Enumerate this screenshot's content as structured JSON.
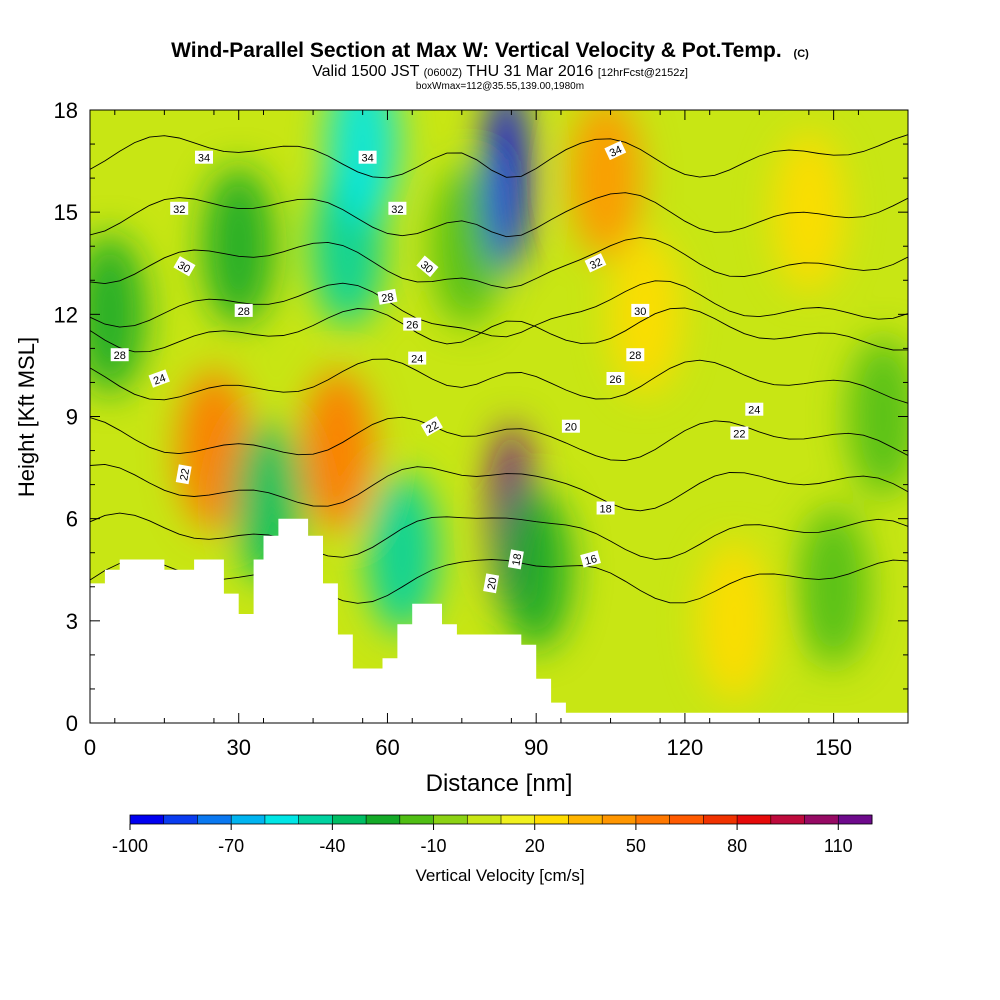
{
  "chart_data": {
    "type": "heatmap",
    "title": "Wind-Parallel Section at Max W: Vertical Velocity & Pot.Temp.",
    "title_suffix": "(C)",
    "subtitle_main_1": "Valid 1500 JST",
    "subtitle_small_1": "(0600Z)",
    "subtitle_main_2": "THU 31 Mar 2016",
    "subtitle_small_2": "[12hrFcst@2152z]",
    "subtitle_line2": "boxWmax=112@35.55,139.00,1980m",
    "xlabel": "Distance [nm]",
    "ylabel": "Height [Kft MSL]",
    "xlim": [
      0,
      165
    ],
    "ylim": [
      0,
      18
    ],
    "xticks": [
      0,
      30,
      60,
      90,
      120,
      150
    ],
    "yticks": [
      0,
      3,
      6,
      9,
      12,
      15,
      18
    ],
    "colorbar": {
      "label": "Vertical Velocity [cm/s]",
      "tick_labels": [
        "-100",
        "-70",
        "-40",
        "-10",
        "20",
        "50",
        "80",
        "110"
      ],
      "tick_values": [
        -100,
        -70,
        -40,
        -10,
        20,
        50,
        80,
        110
      ],
      "levels": [
        -100,
        -90,
        -80,
        -70,
        -60,
        -50,
        -40,
        -30,
        -20,
        -10,
        0,
        10,
        20,
        30,
        40,
        50,
        60,
        70,
        80,
        90,
        100,
        110,
        120
      ],
      "colors": [
        "#0000f0",
        "#0a3cf0",
        "#0a78f0",
        "#00b4f0",
        "#00e6e6",
        "#00d2a0",
        "#00be64",
        "#14aa28",
        "#50be14",
        "#8cd214",
        "#c8e614",
        "#f0f01e",
        "#ffdc00",
        "#ffb400",
        "#ff9600",
        "#ff7800",
        "#ff5a00",
        "#f03200",
        "#e60a0a",
        "#be0a3c",
        "#960a64",
        "#6e0a8c"
      ]
    },
    "vertical_velocity_cells": [
      {
        "x": 4,
        "y": 12,
        "w": -30
      },
      {
        "x": 25,
        "y": 8,
        "w": 55
      },
      {
        "x": 30,
        "y": 14,
        "w": -30
      },
      {
        "x": 36,
        "y": 6.5,
        "w": -40
      },
      {
        "x": 50,
        "y": 8,
        "w": 50
      },
      {
        "x": 52,
        "y": 14,
        "w": -50
      },
      {
        "x": 55,
        "y": 17,
        "w": -60
      },
      {
        "x": 63,
        "y": 5,
        "w": -45
      },
      {
        "x": 76,
        "y": 14,
        "w": -20
      },
      {
        "x": 84,
        "y": 16,
        "w": -95
      },
      {
        "x": 85,
        "y": 6,
        "w": 112
      },
      {
        "x": 90,
        "y": 4.5,
        "w": -30
      },
      {
        "x": 104,
        "y": 16,
        "w": 40
      },
      {
        "x": 112,
        "y": 12,
        "w": 20
      },
      {
        "x": 130,
        "y": 3,
        "w": 25
      },
      {
        "x": 145,
        "y": 15,
        "w": 25
      },
      {
        "x": 150,
        "y": 4,
        "w": -20
      },
      {
        "x": 160,
        "y": 9,
        "w": -15
      }
    ],
    "terrain": [
      [
        0,
        4.1
      ],
      [
        3,
        4.1
      ],
      [
        3,
        4.5
      ],
      [
        6,
        4.5
      ],
      [
        6,
        4.8
      ],
      [
        15,
        4.8
      ],
      [
        15,
        4.5
      ],
      [
        21,
        4.5
      ],
      [
        21,
        4.8
      ],
      [
        27,
        4.8
      ],
      [
        27,
        3.8
      ],
      [
        30,
        3.8
      ],
      [
        30,
        3.2
      ],
      [
        33,
        3.2
      ],
      [
        33,
        4.8
      ],
      [
        35,
        4.8
      ],
      [
        35,
        5.5
      ],
      [
        38,
        5.5
      ],
      [
        38,
        6.0
      ],
      [
        44,
        6.0
      ],
      [
        44,
        5.5
      ],
      [
        47,
        5.5
      ],
      [
        47,
        4.1
      ],
      [
        50,
        4.1
      ],
      [
        50,
        2.6
      ],
      [
        53,
        2.6
      ],
      [
        53,
        1.6
      ],
      [
        59,
        1.6
      ],
      [
        59,
        1.9
      ],
      [
        62,
        1.9
      ],
      [
        62,
        2.9
      ],
      [
        65,
        2.9
      ],
      [
        65,
        3.5
      ],
      [
        71,
        3.5
      ],
      [
        71,
        2.9
      ],
      [
        74,
        2.9
      ],
      [
        74,
        2.6
      ],
      [
        87,
        2.6
      ],
      [
        87,
        2.3
      ],
      [
        90,
        2.3
      ],
      [
        90,
        1.3
      ],
      [
        93,
        1.3
      ],
      [
        93,
        0.6
      ],
      [
        96,
        0.6
      ],
      [
        96,
        0.3
      ],
      [
        165,
        0.3
      ]
    ],
    "isentropes": [
      {
        "value": 16,
        "y": 4.2
      },
      {
        "value": 18,
        "y": 5.5
      },
      {
        "value": 20,
        "y": 6.9
      },
      {
        "value": 22,
        "y": 8.3
      },
      {
        "value": 24,
        "y": 10.0
      },
      {
        "value": 26,
        "y": 11.5
      },
      {
        "value": 28,
        "y": 12.3
      },
      {
        "value": 30,
        "y": 13.6
      },
      {
        "value": 32,
        "y": 15.0
      },
      {
        "value": 34,
        "y": 16.7
      }
    ],
    "contour_labels": [
      {
        "text": "34",
        "x": 23,
        "y": 16.6,
        "a": 0
      },
      {
        "text": "34",
        "x": 56,
        "y": 16.6,
        "a": 0
      },
      {
        "text": "34",
        "x": 106,
        "y": 16.8,
        "a": -25
      },
      {
        "text": "32",
        "x": 18,
        "y": 15.1,
        "a": 0
      },
      {
        "text": "32",
        "x": 62,
        "y": 15.1,
        "a": 0
      },
      {
        "text": "32",
        "x": 102,
        "y": 13.5,
        "a": -25
      },
      {
        "text": "30",
        "x": 19,
        "y": 13.4,
        "a": 30
      },
      {
        "text": "30",
        "x": 68,
        "y": 13.4,
        "a": 40
      },
      {
        "text": "30",
        "x": 111,
        "y": 12.1,
        "a": 0
      },
      {
        "text": "28",
        "x": 6,
        "y": 10.8,
        "a": 0
      },
      {
        "text": "28",
        "x": 31,
        "y": 12.1,
        "a": 0
      },
      {
        "text": "28",
        "x": 60,
        "y": 12.5,
        "a": -10
      },
      {
        "text": "28",
        "x": 110,
        "y": 10.8,
        "a": 0
      },
      {
        "text": "26",
        "x": 65,
        "y": 11.7,
        "a": 0
      },
      {
        "text": "26",
        "x": 106,
        "y": 10.1,
        "a": 0
      },
      {
        "text": "24",
        "x": 14,
        "y": 10.1,
        "a": -20
      },
      {
        "text": "24",
        "x": 66,
        "y": 10.7,
        "a": 0
      },
      {
        "text": "24",
        "x": 134,
        "y": 9.2,
        "a": 0
      },
      {
        "text": "22",
        "x": 19,
        "y": 7.3,
        "a": -80
      },
      {
        "text": "22",
        "x": 69,
        "y": 8.7,
        "a": -30
      },
      {
        "text": "22",
        "x": 131,
        "y": 8.5,
        "a": 0
      },
      {
        "text": "20",
        "x": 81,
        "y": 4.1,
        "a": -80
      },
      {
        "text": "20",
        "x": 97,
        "y": 8.7,
        "a": 0
      },
      {
        "text": "18",
        "x": 86,
        "y": 4.8,
        "a": -80
      },
      {
        "text": "18",
        "x": 104,
        "y": 6.3,
        "a": 0
      },
      {
        "text": "16",
        "x": 101,
        "y": 4.8,
        "a": -15
      }
    ]
  }
}
